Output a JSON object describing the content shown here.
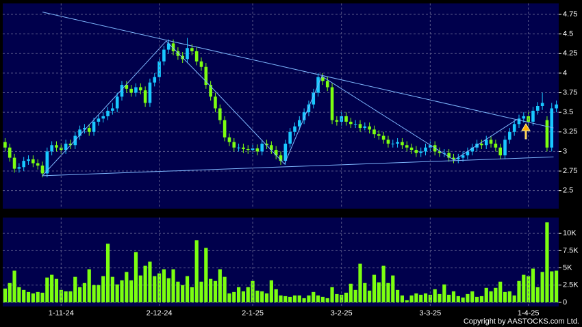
{
  "chart_data": [
    {
      "type": "candlestick",
      "up_color": "#19c8ff",
      "down_color": "#7cff10",
      "line_color": "#7fb8ff",
      "grid": true,
      "ylim": [
        2.27,
        4.89
      ],
      "yticks": [
        2.5,
        2.75,
        3,
        3.25,
        3.5,
        3.75,
        4,
        4.25,
        4.5,
        4.75
      ],
      "open": [
        3.12,
        3.05,
        2.92,
        2.78,
        2.8,
        2.88,
        2.9,
        2.85,
        2.82,
        2.72,
        3.0,
        3.08,
        3.05,
        3.02,
        3.1,
        3.08,
        3.2,
        3.28,
        3.3,
        3.25,
        3.38,
        3.42,
        3.45,
        3.52,
        3.55,
        3.7,
        3.85,
        3.8,
        3.75,
        3.82,
        3.78,
        3.62,
        3.88,
        3.95,
        4.15,
        4.3,
        4.38,
        4.28,
        4.22,
        4.18,
        4.32,
        4.28,
        4.15,
        4.08,
        3.85,
        3.7,
        3.55,
        3.4,
        3.18,
        3.12,
        3.05,
        3.05,
        3.03,
        3.02,
        3.04,
        3.0,
        3.1,
        3.08,
        3.02,
        2.95,
        2.88,
        3.1,
        3.25,
        3.32,
        3.4,
        3.5,
        3.6,
        3.75,
        3.95,
        3.9,
        3.82,
        3.4,
        3.38,
        3.45,
        3.38,
        3.35,
        3.35,
        3.3,
        3.32,
        3.28,
        3.22,
        3.2,
        3.15,
        3.1,
        3.1,
        3.12,
        3.08,
        3.05,
        3.02,
        2.98,
        3.0,
        3.05,
        3.08,
        3.0,
        2.98,
        2.98,
        2.92,
        2.9,
        2.92,
        2.95,
        3.0,
        3.05,
        3.1,
        3.08,
        3.15,
        3.1,
        3.05,
        2.95,
        3.15,
        3.25,
        3.35,
        3.42,
        3.45,
        3.38,
        3.52,
        3.58,
        3.4,
        3.05,
        3.55
      ],
      "high": [
        3.17,
        3.1,
        2.97,
        2.85,
        2.93,
        2.95,
        2.95,
        2.9,
        2.87,
        3.05,
        3.13,
        3.13,
        3.1,
        3.15,
        3.15,
        3.25,
        3.33,
        3.35,
        3.35,
        3.43,
        3.47,
        3.5,
        3.57,
        3.62,
        3.75,
        3.9,
        3.9,
        3.85,
        3.87,
        3.87,
        3.83,
        3.93,
        4.0,
        4.2,
        4.35,
        4.43,
        4.43,
        4.33,
        4.27,
        4.45,
        4.37,
        4.33,
        4.2,
        4.13,
        3.9,
        3.75,
        3.6,
        3.45,
        3.23,
        3.17,
        3.1,
        3.1,
        3.08,
        3.09,
        3.09,
        3.15,
        3.15,
        3.13,
        3.07,
        3.0,
        3.15,
        3.3,
        3.37,
        3.45,
        3.55,
        3.65,
        3.8,
        4.0,
        4.0,
        3.95,
        3.87,
        3.45,
        3.5,
        3.5,
        3.43,
        3.4,
        3.4,
        3.37,
        3.37,
        3.33,
        3.27,
        3.25,
        3.2,
        3.15,
        3.17,
        3.17,
        3.13,
        3.1,
        3.07,
        3.05,
        3.1,
        3.13,
        3.13,
        3.05,
        3.03,
        3.03,
        2.97,
        2.97,
        3.0,
        3.05,
        3.1,
        3.15,
        3.15,
        3.2,
        3.2,
        3.15,
        3.1,
        3.2,
        3.3,
        3.4,
        3.47,
        3.5,
        3.5,
        3.57,
        3.63,
        3.75,
        3.45,
        3.62,
        3.65
      ],
      "low": [
        3.0,
        2.87,
        2.73,
        2.73,
        2.75,
        2.83,
        2.8,
        2.77,
        2.67,
        2.67,
        2.95,
        3.0,
        2.97,
        2.97,
        3.03,
        3.03,
        3.15,
        3.23,
        3.2,
        3.2,
        3.33,
        3.37,
        3.4,
        3.47,
        3.5,
        3.65,
        3.75,
        3.7,
        3.7,
        3.73,
        3.57,
        3.57,
        3.83,
        3.9,
        4.1,
        4.25,
        4.23,
        4.17,
        4.13,
        4.13,
        4.23,
        4.1,
        4.03,
        3.8,
        3.65,
        3.5,
        3.35,
        3.13,
        3.07,
        3.0,
        3.0,
        2.98,
        2.97,
        2.97,
        2.95,
        2.95,
        3.03,
        2.97,
        2.9,
        2.83,
        2.83,
        3.05,
        3.2,
        3.27,
        3.35,
        3.45,
        3.55,
        3.7,
        3.85,
        3.77,
        3.35,
        3.33,
        3.33,
        3.33,
        3.3,
        3.3,
        3.25,
        3.27,
        3.23,
        3.17,
        3.15,
        3.1,
        3.05,
        3.05,
        3.05,
        3.03,
        3.0,
        2.97,
        2.93,
        2.93,
        2.95,
        3.0,
        2.95,
        2.93,
        2.93,
        2.87,
        2.85,
        2.85,
        2.87,
        2.9,
        2.95,
        3.0,
        3.03,
        3.03,
        3.05,
        3.0,
        2.9,
        2.9,
        3.1,
        3.2,
        3.3,
        3.37,
        3.33,
        3.33,
        3.47,
        3.53,
        3.0,
        3.0,
        3.5
      ],
      "close": [
        3.05,
        2.92,
        2.78,
        2.8,
        2.88,
        2.9,
        2.85,
        2.82,
        2.72,
        3.0,
        3.08,
        3.05,
        3.02,
        3.1,
        3.08,
        3.2,
        3.28,
        3.3,
        3.25,
        3.38,
        3.42,
        3.45,
        3.52,
        3.55,
        3.7,
        3.85,
        3.8,
        3.75,
        3.82,
        3.78,
        3.62,
        3.88,
        3.95,
        4.15,
        4.3,
        4.38,
        4.28,
        4.22,
        4.18,
        4.32,
        4.28,
        4.15,
        4.08,
        3.85,
        3.7,
        3.55,
        3.4,
        3.18,
        3.12,
        3.05,
        3.05,
        3.03,
        3.02,
        3.04,
        3.0,
        3.1,
        3.08,
        3.02,
        2.95,
        2.88,
        3.1,
        3.25,
        3.32,
        3.4,
        3.5,
        3.6,
        3.75,
        3.95,
        3.9,
        3.82,
        3.4,
        3.38,
        3.45,
        3.38,
        3.35,
        3.35,
        3.3,
        3.32,
        3.28,
        3.22,
        3.2,
        3.15,
        3.1,
        3.1,
        3.12,
        3.08,
        3.05,
        3.02,
        2.98,
        3.0,
        3.05,
        3.08,
        3.0,
        2.98,
        2.98,
        2.92,
        2.9,
        2.92,
        2.95,
        3.0,
        3.05,
        3.1,
        3.08,
        3.15,
        3.1,
        3.05,
        2.95,
        3.15,
        3.25,
        3.35,
        3.42,
        3.45,
        3.38,
        3.52,
        3.58,
        3.62,
        3.05,
        3.55,
        3.6
      ],
      "trendlines": [
        {
          "x": [
            8.0,
            117.4
          ],
          "y": [
            4.78,
            3.3
          ]
        },
        {
          "x": [
            8.0,
            117.4
          ],
          "y": [
            2.69,
            2.93
          ]
        },
        {
          "x": [
            8.0,
            34.5,
            42.9,
            59.8,
            67.8,
            96.1,
            109.6
          ],
          "y": [
            2.69,
            4.41,
            3.9,
            2.84,
            3.96,
            2.89,
            3.41
          ]
        }
      ]
    },
    {
      "type": "bar",
      "color": "#7cff10",
      "grid": true,
      "ylim": [
        -600,
        12300
      ],
      "yticks": [
        0,
        {
          "value": 2500,
          "label": "2.5K"
        },
        {
          "value": 5000,
          "label": "5K"
        },
        {
          "value": 7500,
          "label": "7.5K"
        },
        {
          "value": 10000,
          "label": "10K"
        }
      ],
      "categories": [
        null,
        null,
        null,
        null,
        null,
        null,
        null,
        null,
        null,
        null,
        null,
        null,
        "1-11-24",
        null,
        null,
        null,
        null,
        null,
        null,
        null,
        null,
        null,
        null,
        null,
        null,
        null,
        null,
        null,
        null,
        null,
        null,
        null,
        null,
        "2-12-24",
        null,
        null,
        null,
        null,
        null,
        null,
        null,
        null,
        null,
        null,
        null,
        null,
        null,
        null,
        null,
        null,
        null,
        null,
        null,
        "2-1-25",
        null,
        null,
        null,
        null,
        null,
        null,
        null,
        null,
        null,
        null,
        null,
        null,
        null,
        null,
        null,
        null,
        null,
        null,
        "3-2-25",
        null,
        null,
        null,
        null,
        null,
        null,
        null,
        null,
        null,
        null,
        null,
        null,
        null,
        null,
        null,
        null,
        null,
        null,
        "3-3-25",
        null,
        null,
        null,
        null,
        null,
        null,
        null,
        null,
        null,
        null,
        null,
        null,
        null,
        null,
        null,
        null,
        null,
        null,
        null,
        null,
        "1-4-25",
        null,
        null,
        null,
        null,
        null,
        null
      ],
      "values": [
        2000,
        2800,
        4600,
        2200,
        1800,
        1500,
        1300,
        1500,
        1400,
        3600,
        4000,
        3400,
        1800,
        1600,
        1600,
        3700,
        2200,
        2800,
        4800,
        2500,
        2500,
        3800,
        8500,
        3700,
        2600,
        3200,
        4400,
        3200,
        7300,
        3900,
        5300,
        5900,
        3800,
        4200,
        4800,
        3500,
        4800,
        3000,
        2500,
        3800,
        2200,
        9000,
        3000,
        7900,
        3400,
        3100,
        4800,
        3700,
        1300,
        1500,
        2200,
        1600,
        2200,
        3100,
        1700,
        1600,
        1300,
        3200,
        1900,
        1000,
        900,
        800,
        1000,
        1000,
        600,
        1000,
        1500,
        1000,
        800,
        600,
        2200,
        1200,
        1100,
        1400,
        2700,
        1800,
        5600,
        2800,
        1700,
        4000,
        2900,
        5300,
        2800,
        3900,
        1800,
        1000,
        300,
        1000,
        1300,
        1100,
        1300,
        1100,
        1900,
        1200,
        2600,
        1100,
        1600,
        900,
        700,
        1200,
        1600,
        800,
        900,
        2100,
        1600,
        2100,
        3000,
        1500,
        1600,
        1000,
        3100,
        4000,
        3800,
        4900,
        2200,
        4400,
        11600,
        4500,
        4600
      ]
    }
  ],
  "footer": "Copyright by AASTOCKS.com Ltd."
}
